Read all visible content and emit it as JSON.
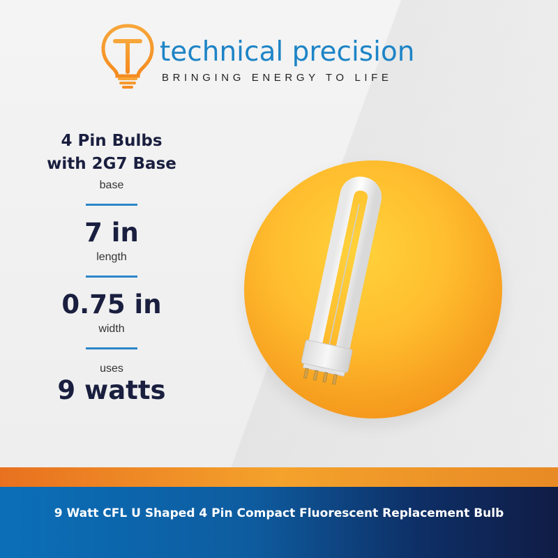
{
  "brand": {
    "name": "technical precision",
    "tagline": "BRINGING ENERGY TO LIFE",
    "logo_icon": "lightbulb-t-logo-icon",
    "color": "#1d84c6"
  },
  "specs": {
    "base_title_line1": "4 Pin Bulbs",
    "base_title_line2": "with 2G7 Base",
    "base_label": "base",
    "length_value": "7 in",
    "length_label": "length",
    "width_value": "0.75 in",
    "width_label": "width",
    "power_prefix": "uses",
    "power_value": "9 watts"
  },
  "product_image": {
    "icon": "cfl-u-bulb-icon",
    "accent_color": "#ffbd2e"
  },
  "banner": {
    "text": "9 Watt CFL U Shaped 4 Pin Compact Fluorescent Replacement Bulb",
    "stripe_color": "#f4a22c",
    "background_color": "#0e5c9f"
  }
}
